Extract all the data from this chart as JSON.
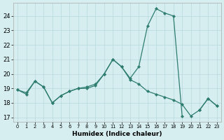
{
  "xlabel": "Humidex (Indice chaleur)",
  "x_all": [
    0,
    1,
    2,
    3,
    4,
    5,
    6,
    7,
    8,
    9,
    10,
    11,
    12,
    13,
    14,
    15,
    16,
    17,
    18,
    19,
    20,
    21,
    22,
    23
  ],
  "line1_y": [
    18.9,
    18.6,
    19.5,
    19.1,
    18.0,
    18.5,
    18.8,
    19.0,
    19.1,
    19.3,
    20.0,
    21.0,
    20.5,
    19.7,
    20.5,
    23.3,
    24.5,
    24.2,
    24.0,
    17.1,
    null,
    17.5,
    18.3,
    17.8
  ],
  "line2_y": [
    18.9,
    18.7,
    19.5,
    19.1,
    18.0,
    18.5,
    18.8,
    19.0,
    19.0,
    19.2,
    20.0,
    21.0,
    20.5,
    19.6,
    19.3,
    18.8,
    18.6,
    18.4,
    18.2,
    17.9,
    17.1,
    17.5,
    18.3,
    17.8
  ],
  "line_color": "#2e7d6e",
  "bg_color": "#d6eef0",
  "grid_color": "#b8d8dc",
  "ylim": [
    16.7,
    24.9
  ],
  "xlim": [
    -0.5,
    23.5
  ],
  "yticks": [
    17,
    18,
    19,
    20,
    21,
    22,
    23,
    24
  ],
  "xticks": [
    0,
    1,
    2,
    3,
    4,
    5,
    6,
    7,
    8,
    9,
    10,
    11,
    12,
    13,
    14,
    15,
    16,
    17,
    18,
    19,
    20,
    21,
    22,
    23
  ],
  "linewidth": 0.9,
  "markersize": 2.2
}
